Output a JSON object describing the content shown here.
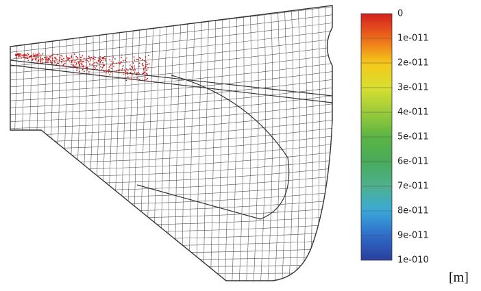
{
  "legend": {
    "labels": [
      "0",
      "1e-011",
      "2e-011",
      "3e-011",
      "4e-011",
      "5e-011",
      "6e-011",
      "7e-011",
      "8e-011",
      "9e-011",
      "1e-010"
    ],
    "colors": [
      "#d42020",
      "#ee6a1a",
      "#f5c81a",
      "#d8e030",
      "#9acb3a",
      "#5bb444",
      "#48ab5a",
      "#4fb08e",
      "#3aa8d8",
      "#2e6cc8",
      "#2a3f9e"
    ],
    "unit": "[m]"
  }
}
